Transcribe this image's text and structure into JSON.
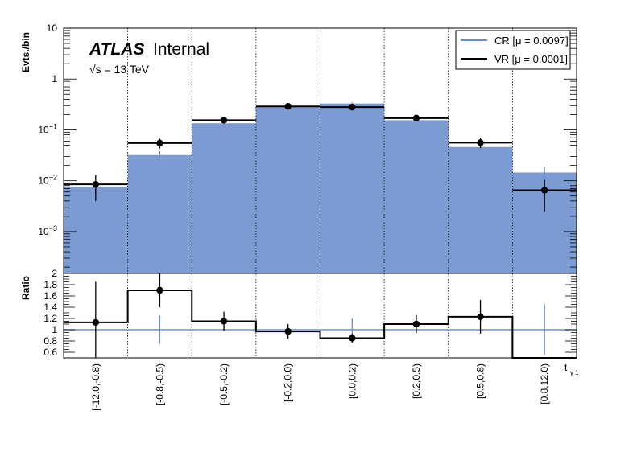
{
  "chart_data": {
    "type": "histogram",
    "experiment": "ATLAS",
    "experiment_status": "Internal",
    "energy_label": "√s = 13 TeV",
    "categories": [
      "[-12.0,-0.8)",
      "[-0.8,-0.5)",
      "[-0.5,-0.2)",
      "[-0.2,0.0)",
      "[0.0,0.2)",
      "[0.2,0.5)",
      "[0.5,0.8)",
      "[0.8,12.0)"
    ],
    "xlabel": "t",
    "xlabel_sub": "γ 1",
    "top_panel": {
      "ylabel": "Evts./bin",
      "yscale": "log",
      "ylim": [
        0.00015,
        10
      ],
      "yticks": [
        {
          "value": 0.001,
          "base": "10",
          "exp": "−3"
        },
        {
          "value": 0.01,
          "base": "10",
          "exp": "−2"
        },
        {
          "value": 0.1,
          "base": "10",
          "exp": "−1"
        },
        {
          "value": 1,
          "base": "1",
          "exp": ""
        },
        {
          "value": 10,
          "base": "10",
          "exp": ""
        }
      ],
      "series": [
        {
          "name": "CR [μ = 0.0097]",
          "style": "filled",
          "color": "#7b9bd2",
          "values": [
            0.0075,
            0.032,
            0.135,
            0.29,
            0.33,
            0.155,
            0.046,
            0.0145
          ],
          "errors": [
            0.002,
            0.006,
            0.01,
            0.02,
            0.02,
            0.01,
            0.006,
            0.004
          ]
        },
        {
          "name": "VR [μ = 0.0001]",
          "style": "points",
          "color": "#000000",
          "values": [
            0.0085,
            0.055,
            0.155,
            0.29,
            0.28,
            0.17,
            0.056,
            0.0065
          ],
          "errors": [
            0.0045,
            0.012,
            0.02,
            0.03,
            0.03,
            0.02,
            0.012,
            0.004
          ]
        }
      ]
    },
    "ratio_panel": {
      "ylabel": "Ratio",
      "ylim": [
        0.5,
        2.0
      ],
      "yticks": [
        0.6,
        0.8,
        1,
        1.2,
        1.4,
        1.6,
        1.8,
        2
      ],
      "values": [
        1.13,
        1.7,
        1.15,
        0.97,
        0.85,
        1.1,
        1.23,
        0.45
      ],
      "errors": [
        0.72,
        0.3,
        0.17,
        0.13,
        0.08,
        0.16,
        0.3,
        0.0
      ],
      "reference_errors": [
        0.0,
        0.25,
        0.0,
        0.0,
        0.2,
        0.0,
        0.0,
        0.45
      ]
    },
    "colors": {
      "cr_fill": "#7b9bd2",
      "cr_line": "#6a8fd0",
      "vr": "#000000",
      "ratio_ref": "#6a8fd0"
    },
    "legend_placement": "top-right",
    "grid": "vertical-dotted"
  }
}
